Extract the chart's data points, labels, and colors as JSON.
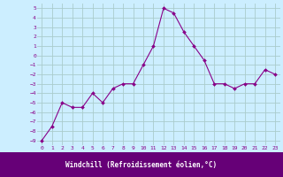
{
  "x": [
    0,
    1,
    2,
    3,
    4,
    5,
    6,
    7,
    8,
    9,
    10,
    11,
    12,
    13,
    14,
    15,
    16,
    17,
    18,
    19,
    20,
    21,
    22,
    23
  ],
  "y": [
    -9,
    -7.5,
    -5,
    -5.5,
    -5.5,
    -4,
    -5,
    -3.5,
    -3,
    -3,
    -1,
    1,
    5,
    4.5,
    2.5,
    1,
    -0.5,
    -3,
    -3,
    -3.5,
    -3,
    -3,
    -1.5,
    -2
  ],
  "line_color": "#880088",
  "marker_color": "#880088",
  "bg_color": "#cceeff",
  "grid_color": "#aacccc",
  "xlabel": "Windchill (Refroidissement éolien,°C)",
  "xlabel_bg": "#660077",
  "xlabel_color": "#ffffff",
  "ylim": [
    -9.5,
    5.5
  ],
  "xlim": [
    -0.5,
    23.5
  ],
  "yticks": [
    5,
    4,
    3,
    2,
    1,
    0,
    -1,
    -2,
    -3,
    -4,
    -5,
    -6,
    -7,
    -8,
    -9
  ],
  "xticks": [
    0,
    1,
    2,
    3,
    4,
    5,
    6,
    7,
    8,
    9,
    10,
    11,
    12,
    13,
    14,
    15,
    16,
    17,
    18,
    19,
    20,
    21,
    22,
    23
  ]
}
